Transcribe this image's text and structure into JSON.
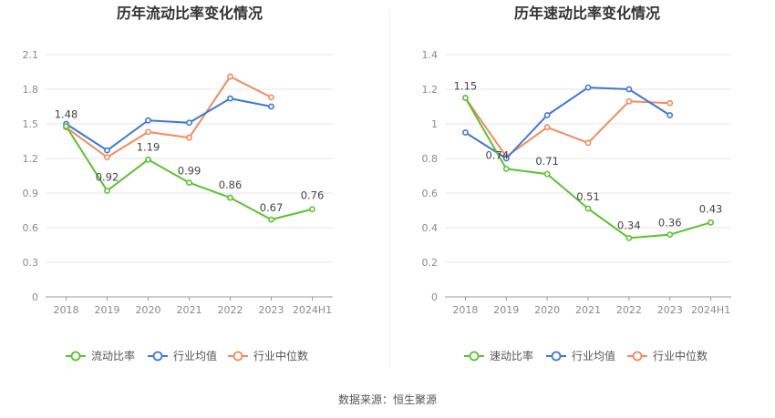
{
  "source": "数据来源：恒生聚源",
  "colors": {
    "primary": "#5cc12f",
    "avg": "#3d77d9",
    "median": "#f28b5e",
    "grid": "#e6e6e6",
    "axis": "#999999"
  },
  "chart_data": [
    {
      "type": "line",
      "title": "历年流动比率变化情况",
      "categories": [
        "2018",
        "2019",
        "2020",
        "2021",
        "2022",
        "2023",
        "2024H1"
      ],
      "ylim": [
        0,
        2.1
      ],
      "yticks": [
        "0",
        "0.3",
        "0.6",
        "0.9",
        "1.2",
        "1.5",
        "1.8",
        "2.1"
      ],
      "grid": true,
      "legend_position": "bottom",
      "series": [
        {
          "name": "流动比率",
          "values": [
            1.48,
            0.92,
            1.19,
            0.99,
            0.86,
            0.67,
            0.76
          ],
          "labels": [
            "1.48",
            "0.92",
            "1.19",
            "0.99",
            "0.86",
            "0.67",
            "0.76"
          ]
        },
        {
          "name": "行业均值",
          "values": [
            1.5,
            1.27,
            1.53,
            1.51,
            1.72,
            1.65,
            null
          ]
        },
        {
          "name": "行业中位数",
          "values": [
            1.47,
            1.21,
            1.43,
            1.38,
            1.91,
            1.73,
            null
          ]
        }
      ]
    },
    {
      "type": "line",
      "title": "历年速动比率变化情况",
      "categories": [
        "2018",
        "2019",
        "2020",
        "2021",
        "2022",
        "2023",
        "2024H1"
      ],
      "ylim": [
        0,
        1.4
      ],
      "yticks": [
        "0",
        "0.2",
        "0.4",
        "0.6",
        "0.8",
        "1",
        "1.2",
        "1.4"
      ],
      "grid": true,
      "legend_position": "bottom",
      "series": [
        {
          "name": "速动比率",
          "values": [
            1.15,
            0.74,
            0.71,
            0.51,
            0.34,
            0.36,
            0.43
          ],
          "labels": [
            "1.15",
            "0.74",
            "0.71",
            "0.51",
            "0.34",
            "0.36",
            "0.43"
          ]
        },
        {
          "name": "行业均值",
          "values": [
            0.95,
            0.8,
            1.05,
            1.21,
            1.2,
            1.05,
            null
          ]
        },
        {
          "name": "行业中位数",
          "values": [
            1.15,
            0.81,
            0.98,
            0.89,
            1.13,
            1.12,
            null
          ]
        }
      ]
    }
  ]
}
